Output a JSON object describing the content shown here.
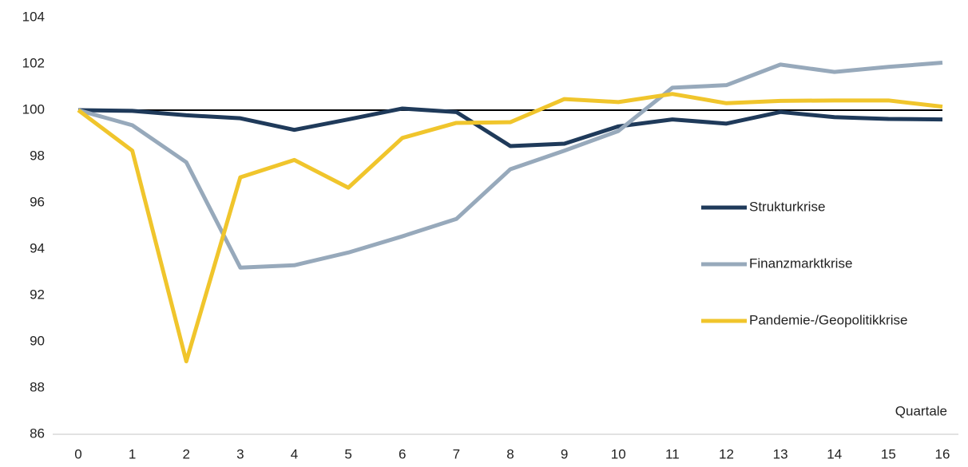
{
  "chart_data": {
    "type": "line",
    "x_label": "Quartale",
    "x": [
      0,
      1,
      2,
      3,
      4,
      5,
      6,
      7,
      8,
      9,
      10,
      11,
      12,
      13,
      14,
      15,
      16
    ],
    "xlim": [
      0,
      16
    ],
    "xticks": [
      0,
      1,
      2,
      3,
      4,
      5,
      6,
      7,
      8,
      9,
      10,
      11,
      12,
      13,
      14,
      15,
      16
    ],
    "ylim": [
      86,
      104
    ],
    "yticks": [
      86,
      88,
      90,
      92,
      94,
      96,
      98,
      100,
      102,
      104
    ],
    "reference_line": 100,
    "grid": false,
    "legend": "right",
    "series": [
      {
        "name": "Strukturkrise",
        "color": "#1f3a5a",
        "values": [
          100,
          99.97,
          99.78,
          99.65,
          99.15,
          99.6,
          100.07,
          99.92,
          98.45,
          98.55,
          99.3,
          99.6,
          99.42,
          99.92,
          99.7,
          99.62,
          99.6
        ]
      },
      {
        "name": "Finanzmarktkrise",
        "color": "#97a9bb",
        "values": [
          100,
          99.35,
          97.75,
          93.2,
          93.3,
          93.85,
          94.55,
          95.3,
          97.45,
          98.25,
          99.1,
          100.97,
          101.08,
          101.97,
          101.65,
          101.87,
          102.05
        ]
      },
      {
        "name": "Pandemie-/Geopolitikkrise",
        "color": "#f0c52c",
        "values": [
          100,
          98.25,
          89.15,
          97.1,
          97.85,
          96.65,
          98.8,
          99.45,
          99.48,
          100.48,
          100.35,
          100.7,
          100.3,
          100.4,
          100.42,
          100.42,
          100.15
        ]
      }
    ]
  }
}
